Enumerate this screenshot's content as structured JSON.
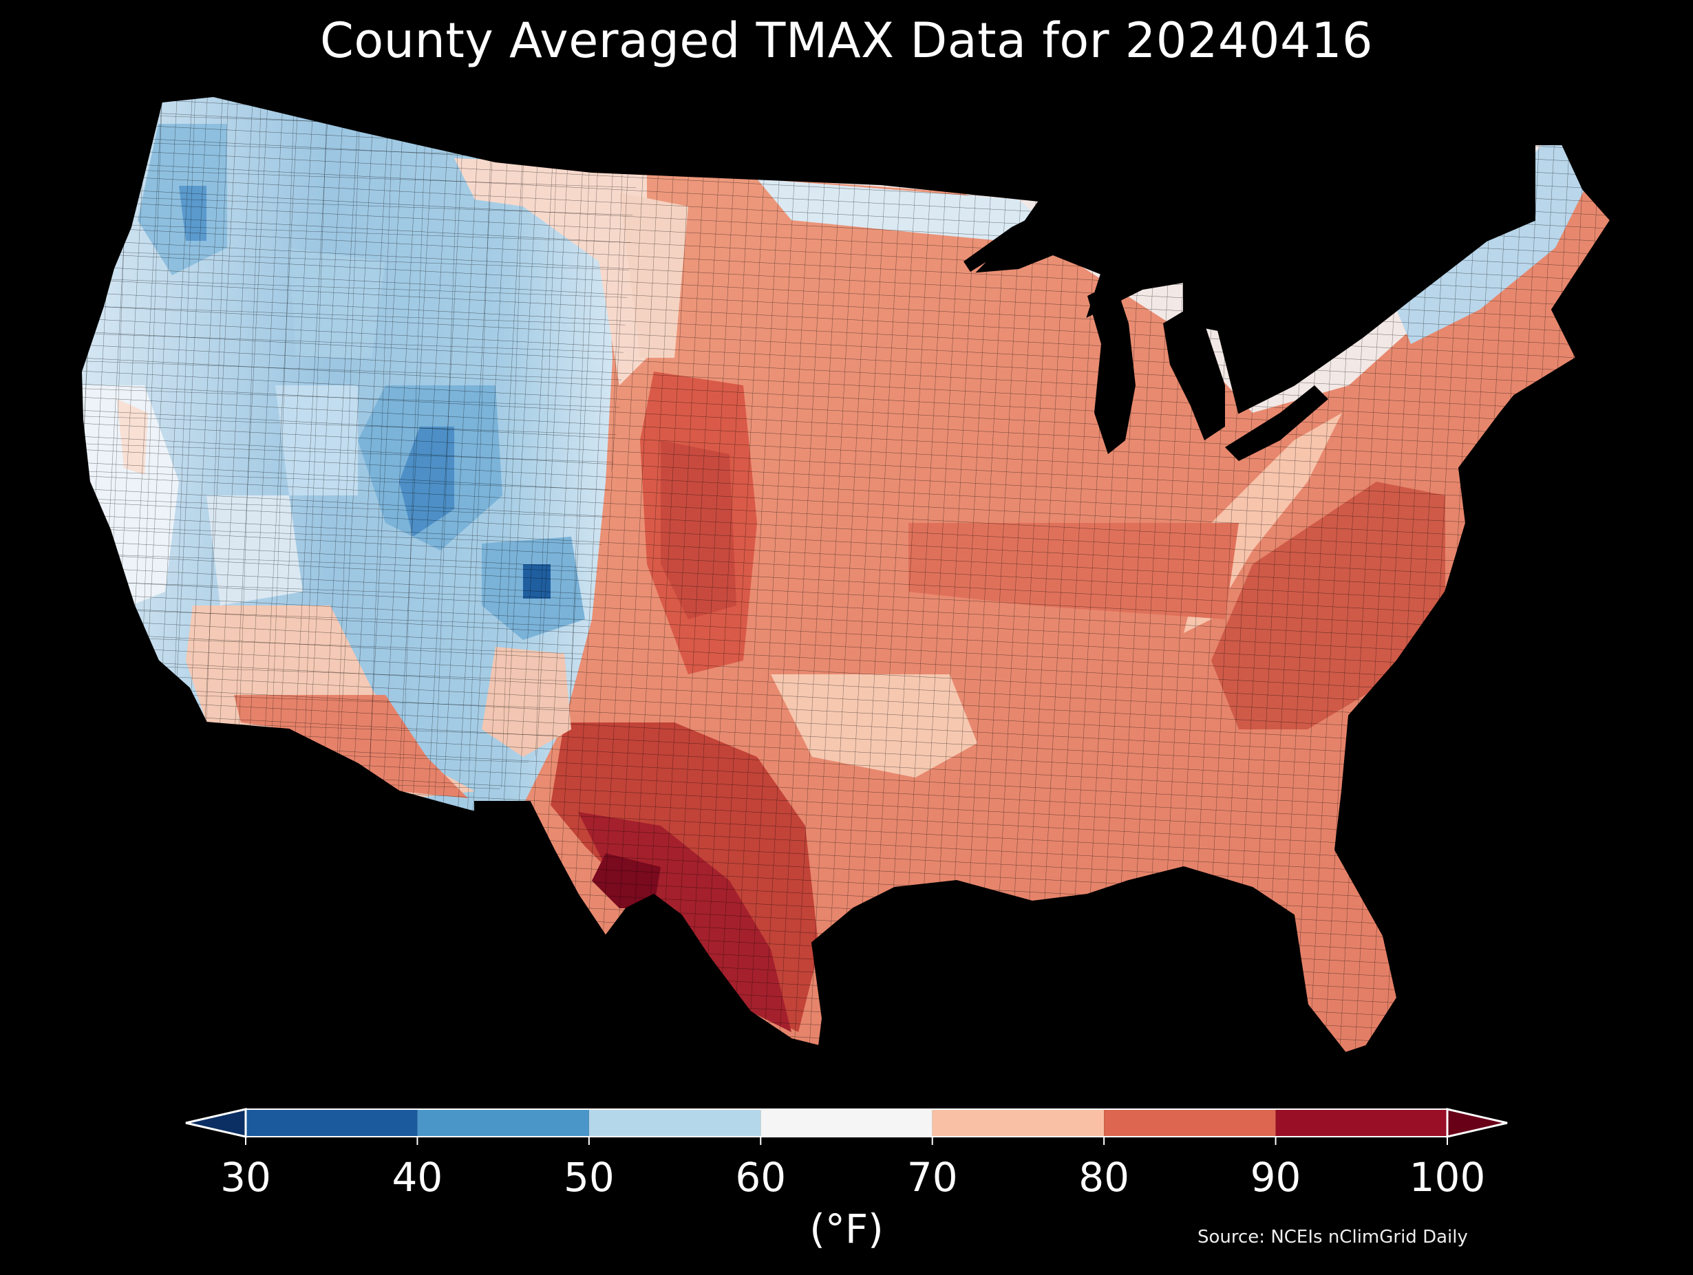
{
  "title": "County Averaged TMAX Data for 20240416",
  "colorbar": {
    "ticks": [
      "30",
      "40",
      "50",
      "60",
      "70",
      "80",
      "90",
      "100"
    ],
    "unit": "(°F)",
    "bins": [
      {
        "from": 30,
        "to": 40,
        "color": "#1b5a9c"
      },
      {
        "from": 40,
        "to": 50,
        "color": "#4a96c8"
      },
      {
        "from": 50,
        "to": 60,
        "color": "#b5d7ea"
      },
      {
        "from": 60,
        "to": 70,
        "color": "#f5f5f5"
      },
      {
        "from": 70,
        "to": 80,
        "color": "#f9c0a5"
      },
      {
        "from": 80,
        "to": 90,
        "color": "#dc6650"
      },
      {
        "from": 90,
        "to": 100,
        "color": "#990f26"
      }
    ],
    "under_color": "#0b2f63",
    "over_color": "#680018"
  },
  "source": "Source: NCEIs nClimGrid Daily",
  "map": {
    "region": "Contiguous United States",
    "variable": "TMAX",
    "background": "#000000"
  }
}
